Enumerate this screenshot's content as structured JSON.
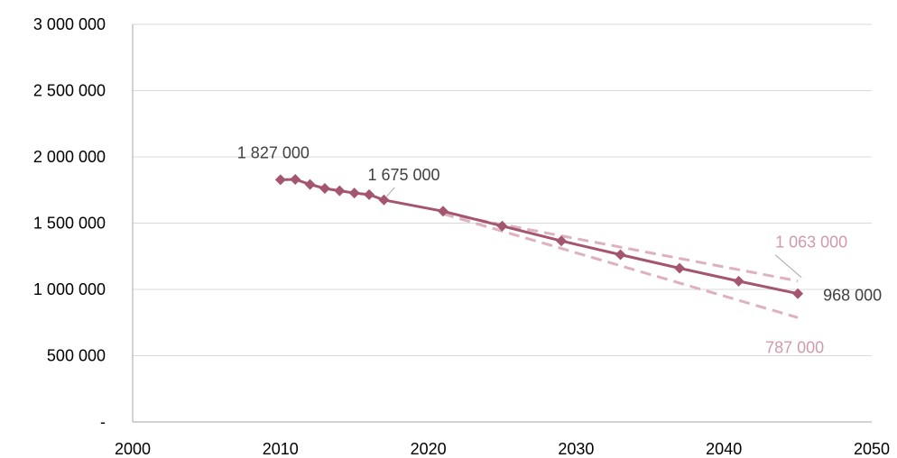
{
  "chart_data": {
    "type": "line",
    "title": "",
    "xlabel": "",
    "ylabel": "",
    "xlim": [
      2000,
      2050
    ],
    "ylim": [
      0,
      3000000
    ],
    "x_ticks": [
      2000,
      2010,
      2020,
      2030,
      2040,
      2050
    ],
    "x_tick_labels": [
      "2000",
      "2010",
      "2020",
      "2030",
      "2040",
      "2050"
    ],
    "y_ticks": [
      0,
      500000,
      1000000,
      1500000,
      2000000,
      2500000,
      3000000
    ],
    "y_tick_labels": [
      "-",
      "500 000",
      "1 000 000",
      "1 500 000",
      "2 000 000",
      "2 500 000",
      "3 000 000"
    ],
    "grid": "horizontal",
    "legend": "none",
    "series": [
      {
        "role": "main",
        "style": "solid-diamond",
        "color": "#A45670",
        "points": [
          {
            "x": 2010,
            "y": 1827000
          },
          {
            "x": 2011,
            "y": 1830000
          },
          {
            "x": 2012,
            "y": 1792000
          },
          {
            "x": 2013,
            "y": 1762000
          },
          {
            "x": 2014,
            "y": 1744000
          },
          {
            "x": 2015,
            "y": 1727000
          },
          {
            "x": 2016,
            "y": 1715000
          },
          {
            "x": 2017,
            "y": 1675000
          },
          {
            "x": 2021,
            "y": 1590000
          },
          {
            "x": 2025,
            "y": 1478000
          },
          {
            "x": 2029,
            "y": 1366000
          },
          {
            "x": 2033,
            "y": 1262000
          },
          {
            "x": 2037,
            "y": 1160000
          },
          {
            "x": 2041,
            "y": 1062000
          },
          {
            "x": 2045,
            "y": 968000
          }
        ]
      },
      {
        "role": "upper",
        "style": "dashed",
        "color": "#DDB1BF",
        "points": [
          {
            "x": 2021,
            "y": 1575000
          },
          {
            "x": 2045,
            "y": 1063000
          }
        ]
      },
      {
        "role": "lower",
        "style": "dashed",
        "color": "#DDB1BF",
        "points": [
          {
            "x": 2021,
            "y": 1570000
          },
          {
            "x": 2045,
            "y": 787000
          }
        ]
      }
    ],
    "annotations": [
      {
        "text": "1 827 000",
        "x": 2010,
        "y": 1827000,
        "color": "#404040"
      },
      {
        "text": "1 675 000",
        "x": 2017,
        "y": 1675000,
        "color": "#404040"
      },
      {
        "text": "1 063 000",
        "x": 2045,
        "y": 1063000,
        "color": "#D09AAE"
      },
      {
        "text": "968 000",
        "x": 2045,
        "y": 968000,
        "color": "#404040"
      },
      {
        "text": "787 000",
        "x": 2045,
        "y": 787000,
        "color": "#D09AAE"
      }
    ]
  }
}
